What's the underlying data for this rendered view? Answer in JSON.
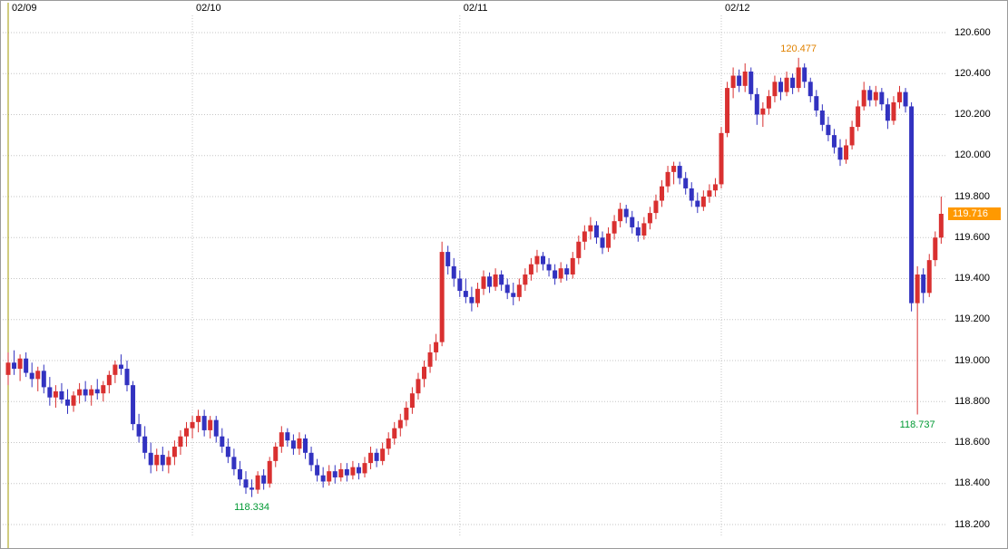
{
  "chart_data": {
    "type": "candlestick",
    "grid": true,
    "background": "#ffffff",
    "colors": {
      "up": "#d93030",
      "down": "#3232c0",
      "grid": "#c6c6c6",
      "week_line": "#a09a00",
      "text": "#000000"
    },
    "price_axis": {
      "side": "right",
      "min": 118.2,
      "max": 120.6,
      "step": 0.2,
      "labels": [
        "120.600",
        "120.400",
        "120.200",
        "120.000",
        "119.800",
        "119.600",
        "119.400",
        "119.200",
        "119.000",
        "118.800",
        "118.600",
        "118.400",
        "118.200"
      ]
    },
    "day_separators": [
      {
        "label": "02/09",
        "index": 0,
        "style": "week"
      },
      {
        "label": "02/10",
        "index": 31,
        "style": "day"
      },
      {
        "label": "02/11",
        "index": 76,
        "style": "day"
      },
      {
        "label": "02/12",
        "index": 120,
        "style": "day"
      }
    ],
    "current_price": {
      "value": 119.716,
      "label": "119.716",
      "bg": "#ff9900",
      "fg": "#ffffff"
    },
    "annotations": [
      {
        "text": "120.477",
        "price": 120.477,
        "candle_index": 133,
        "placement": "above",
        "color": "#e08200"
      },
      {
        "text": "118.334",
        "price": 118.334,
        "candle_index": 41,
        "placement": "below",
        "color": "#009933"
      },
      {
        "text": "118.737",
        "price": 118.737,
        "candle_index": 153,
        "placement": "below",
        "color": "#009933"
      }
    ],
    "candles": [
      [
        118.93,
        119.04,
        118.88,
        118.99
      ],
      [
        118.99,
        119.05,
        118.93,
        118.96
      ],
      [
        118.96,
        119.03,
        118.9,
        119.01
      ],
      [
        119.01,
        119.04,
        118.92,
        118.94
      ],
      [
        118.94,
        118.99,
        118.87,
        118.91
      ],
      [
        118.91,
        118.97,
        118.85,
        118.95
      ],
      [
        118.95,
        118.98,
        118.84,
        118.87
      ],
      [
        118.87,
        118.92,
        118.78,
        118.82
      ],
      [
        118.82,
        118.88,
        118.77,
        118.85
      ],
      [
        118.85,
        118.89,
        118.79,
        118.81
      ],
      [
        118.81,
        118.86,
        118.74,
        118.78
      ],
      [
        118.78,
        118.85,
        118.75,
        118.83
      ],
      [
        118.83,
        118.89,
        118.79,
        118.86
      ],
      [
        118.86,
        118.9,
        118.8,
        118.83
      ],
      [
        118.83,
        118.88,
        118.78,
        118.86
      ],
      [
        118.86,
        118.91,
        118.81,
        118.84
      ],
      [
        118.84,
        118.9,
        118.8,
        118.88
      ],
      [
        118.88,
        118.95,
        118.84,
        118.93
      ],
      [
        118.93,
        119.0,
        118.89,
        118.98
      ],
      [
        118.98,
        119.03,
        118.93,
        118.96
      ],
      [
        118.96,
        119.0,
        118.85,
        118.88
      ],
      [
        118.88,
        118.9,
        118.66,
        118.69
      ],
      [
        118.69,
        118.74,
        118.6,
        118.63
      ],
      [
        118.63,
        118.68,
        118.52,
        118.55
      ],
      [
        118.55,
        118.6,
        118.45,
        118.49
      ],
      [
        118.49,
        118.57,
        118.46,
        118.54
      ],
      [
        118.54,
        118.58,
        118.46,
        118.49
      ],
      [
        118.49,
        118.56,
        118.45,
        118.53
      ],
      [
        118.53,
        118.61,
        118.49,
        118.58
      ],
      [
        118.58,
        118.66,
        118.54,
        118.63
      ],
      [
        118.63,
        118.7,
        118.58,
        118.67
      ],
      [
        118.67,
        118.73,
        118.62,
        118.7
      ],
      [
        118.7,
        118.76,
        118.65,
        118.73
      ],
      [
        118.73,
        118.76,
        118.63,
        118.66
      ],
      [
        118.66,
        118.73,
        118.62,
        118.71
      ],
      [
        118.71,
        118.73,
        118.6,
        118.63
      ],
      [
        118.63,
        118.67,
        118.55,
        118.58
      ],
      [
        118.58,
        118.62,
        118.5,
        118.53
      ],
      [
        118.53,
        118.57,
        118.44,
        118.47
      ],
      [
        118.47,
        118.51,
        118.39,
        118.42
      ],
      [
        118.42,
        118.46,
        118.35,
        118.38
      ],
      [
        118.38,
        118.42,
        118.334,
        118.37
      ],
      [
        118.37,
        118.46,
        118.35,
        118.44
      ],
      [
        118.44,
        118.47,
        118.37,
        118.4
      ],
      [
        118.4,
        118.53,
        118.38,
        118.51
      ],
      [
        118.51,
        118.6,
        118.48,
        118.58
      ],
      [
        118.58,
        118.68,
        118.55,
        118.65
      ],
      [
        118.65,
        118.67,
        118.58,
        118.61
      ],
      [
        118.61,
        118.64,
        118.54,
        118.57
      ],
      [
        118.57,
        118.65,
        118.54,
        118.62
      ],
      [
        118.62,
        118.64,
        118.52,
        118.55
      ],
      [
        118.55,
        118.58,
        118.46,
        118.49
      ],
      [
        118.49,
        118.52,
        118.41,
        118.44
      ],
      [
        118.44,
        118.48,
        118.38,
        118.41
      ],
      [
        118.41,
        118.49,
        118.39,
        118.46
      ],
      [
        118.46,
        118.49,
        118.4,
        118.43
      ],
      [
        118.43,
        118.5,
        118.41,
        118.47
      ],
      [
        118.47,
        118.5,
        118.41,
        118.44
      ],
      [
        118.44,
        118.51,
        118.42,
        118.48
      ],
      [
        118.48,
        118.5,
        118.42,
        118.45
      ],
      [
        118.45,
        118.53,
        118.43,
        118.5
      ],
      [
        118.5,
        118.58,
        118.47,
        118.55
      ],
      [
        118.55,
        118.57,
        118.48,
        118.51
      ],
      [
        118.51,
        118.6,
        118.49,
        118.57
      ],
      [
        118.57,
        118.65,
        118.54,
        118.62
      ],
      [
        118.62,
        118.7,
        118.59,
        118.67
      ],
      [
        118.67,
        118.74,
        118.63,
        118.71
      ],
      [
        118.71,
        118.8,
        118.68,
        118.77
      ],
      [
        118.77,
        118.87,
        118.74,
        118.84
      ],
      [
        118.84,
        118.94,
        118.81,
        118.91
      ],
      [
        118.91,
        119.0,
        118.87,
        118.97
      ],
      [
        118.97,
        119.08,
        118.94,
        119.04
      ],
      [
        119.04,
        119.13,
        119.0,
        119.09
      ],
      [
        119.09,
        119.58,
        119.07,
        119.53
      ],
      [
        119.53,
        119.56,
        119.42,
        119.46
      ],
      [
        119.46,
        119.5,
        119.36,
        119.4
      ],
      [
        119.4,
        119.44,
        119.31,
        119.34
      ],
      [
        119.34,
        119.4,
        119.28,
        119.31
      ],
      [
        119.31,
        119.36,
        119.24,
        119.28
      ],
      [
        119.28,
        119.38,
        119.26,
        119.35
      ],
      [
        119.35,
        119.44,
        119.32,
        119.41
      ],
      [
        119.41,
        119.43,
        119.33,
        119.36
      ],
      [
        119.36,
        119.45,
        119.34,
        119.42
      ],
      [
        119.42,
        119.44,
        119.34,
        119.37
      ],
      [
        119.37,
        119.4,
        119.3,
        119.33
      ],
      [
        119.33,
        119.38,
        119.27,
        119.31
      ],
      [
        119.31,
        119.4,
        119.29,
        119.37
      ],
      [
        119.37,
        119.45,
        119.34,
        119.42
      ],
      [
        119.42,
        119.5,
        119.39,
        119.47
      ],
      [
        119.47,
        119.54,
        119.43,
        119.51
      ],
      [
        119.51,
        119.53,
        119.44,
        119.47
      ],
      [
        119.47,
        119.5,
        119.41,
        119.44
      ],
      [
        119.44,
        119.47,
        119.37,
        119.4
      ],
      [
        119.4,
        119.48,
        119.38,
        119.45
      ],
      [
        119.45,
        119.47,
        119.39,
        119.42
      ],
      [
        119.42,
        119.53,
        119.4,
        119.5
      ],
      [
        119.5,
        119.61,
        119.47,
        119.58
      ],
      [
        119.58,
        119.66,
        119.54,
        119.63
      ],
      [
        119.63,
        119.7,
        119.59,
        119.66
      ],
      [
        119.66,
        119.68,
        119.57,
        119.6
      ],
      [
        119.6,
        119.63,
        119.52,
        119.55
      ],
      [
        119.55,
        119.65,
        119.53,
        119.62
      ],
      [
        119.62,
        119.71,
        119.59,
        119.68
      ],
      [
        119.68,
        119.77,
        119.65,
        119.74
      ],
      [
        119.74,
        119.76,
        119.67,
        119.7
      ],
      [
        119.7,
        119.73,
        119.62,
        119.65
      ],
      [
        119.65,
        119.68,
        119.58,
        119.61
      ],
      [
        119.61,
        119.7,
        119.59,
        119.67
      ],
      [
        119.67,
        119.75,
        119.64,
        119.72
      ],
      [
        119.72,
        119.81,
        119.69,
        119.78
      ],
      [
        119.78,
        119.88,
        119.75,
        119.85
      ],
      [
        119.85,
        119.95,
        119.82,
        119.92
      ],
      [
        119.92,
        119.97,
        119.86,
        119.95
      ],
      [
        119.95,
        119.97,
        119.86,
        119.89
      ],
      [
        119.89,
        119.92,
        119.81,
        119.84
      ],
      [
        119.84,
        119.87,
        119.75,
        119.78
      ],
      [
        119.78,
        119.82,
        119.72,
        119.75
      ],
      [
        119.75,
        119.83,
        119.73,
        119.8
      ],
      [
        119.8,
        119.86,
        119.77,
        119.83
      ],
      [
        119.83,
        119.89,
        119.8,
        119.86
      ],
      [
        119.86,
        120.14,
        119.84,
        120.11
      ],
      [
        120.11,
        120.36,
        120.09,
        120.33
      ],
      [
        120.33,
        120.43,
        120.28,
        120.39
      ],
      [
        120.39,
        120.42,
        120.31,
        120.34
      ],
      [
        120.34,
        120.45,
        120.31,
        120.41
      ],
      [
        120.41,
        120.43,
        120.27,
        120.3
      ],
      [
        120.3,
        120.33,
        120.15,
        120.2
      ],
      [
        120.2,
        120.26,
        120.14,
        120.23
      ],
      [
        120.23,
        120.32,
        120.2,
        120.29
      ],
      [
        120.29,
        120.39,
        120.26,
        120.36
      ],
      [
        120.36,
        120.38,
        120.27,
        120.31
      ],
      [
        120.31,
        120.41,
        120.29,
        120.38
      ],
      [
        120.38,
        120.4,
        120.3,
        120.33
      ],
      [
        120.33,
        120.477,
        120.31,
        120.43
      ],
      [
        120.43,
        120.45,
        120.33,
        120.36
      ],
      [
        120.36,
        120.38,
        120.26,
        120.29
      ],
      [
        120.29,
        120.32,
        120.19,
        120.22
      ],
      [
        120.22,
        120.25,
        120.12,
        120.15
      ],
      [
        120.15,
        120.19,
        120.07,
        120.1
      ],
      [
        120.1,
        120.13,
        120.01,
        120.04
      ],
      [
        120.04,
        120.08,
        119.95,
        119.98
      ],
      [
        119.98,
        120.08,
        119.96,
        120.05
      ],
      [
        120.05,
        120.17,
        120.03,
        120.14
      ],
      [
        120.14,
        120.27,
        120.12,
        120.24
      ],
      [
        120.24,
        120.36,
        120.22,
        120.32
      ],
      [
        120.32,
        120.34,
        120.24,
        120.27
      ],
      [
        120.27,
        120.34,
        120.24,
        120.31
      ],
      [
        120.31,
        120.33,
        120.22,
        120.25
      ],
      [
        120.25,
        120.28,
        120.13,
        120.17
      ],
      [
        120.17,
        120.29,
        120.15,
        120.26
      ],
      [
        120.26,
        120.34,
        120.23,
        120.31
      ],
      [
        120.31,
        120.33,
        120.21,
        120.24
      ],
      [
        120.24,
        120.26,
        119.24,
        119.28
      ],
      [
        119.28,
        119.46,
        118.737,
        119.42
      ],
      [
        119.42,
        119.45,
        119.28,
        119.33
      ],
      [
        119.33,
        119.52,
        119.31,
        119.49
      ],
      [
        119.49,
        119.63,
        119.46,
        119.6
      ],
      [
        119.6,
        119.8,
        119.57,
        119.716
      ]
    ]
  }
}
